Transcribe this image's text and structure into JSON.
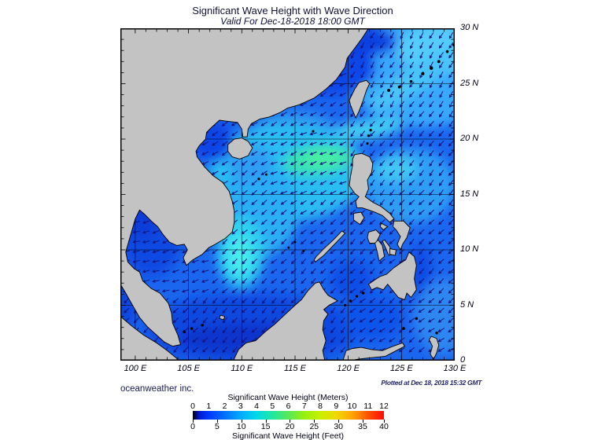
{
  "header": {
    "title": "Significant Wave Height with Wave Direction",
    "subtitle": "Valid For Dec-18-2018 18:00 GMT"
  },
  "map": {
    "lat_labels": [
      "30 N",
      "25 N",
      "20 N",
      "15 N",
      "10 N",
      "5 N",
      "0"
    ],
    "lat_values": [
      30,
      25,
      20,
      15,
      10,
      5,
      0
    ],
    "lon_labels": [
      "100 E",
      "105 E",
      "110 E",
      "115 E",
      "120 E",
      "125 E",
      "130 E"
    ],
    "lon_values": [
      100,
      105,
      110,
      115,
      120,
      125,
      130
    ],
    "grid_interval_deg": 5,
    "land_color": "#c3c3c3",
    "coast_color": "#000000",
    "ocean_base_color": "#1b66ee",
    "arrow_color": "#141480",
    "wave_direction": "arrows point predominantly southwest (northeast monsoon)"
  },
  "footer": {
    "branding": "oceanweather inc.",
    "plotted": "Plotted at Dec 18, 2018 15:32 GMT"
  },
  "legend": {
    "meters_title": "Significant Wave Height (Meters)",
    "feet_title": "Significant Wave Height (Feet)",
    "meter_ticks": [
      0,
      1,
      2,
      3,
      4,
      5,
      6,
      7,
      8,
      9,
      10,
      11,
      12
    ],
    "feet_ticks": [
      0,
      5,
      10,
      15,
      20,
      25,
      30,
      35,
      40
    ],
    "colormap": [
      {
        "m": 0.0,
        "color": "#000000"
      },
      {
        "m": 0.4,
        "color": "#0018d0"
      },
      {
        "m": 1.0,
        "color": "#0038ff"
      },
      {
        "m": 2.0,
        "color": "#0070ff"
      },
      {
        "m": 3.0,
        "color": "#00aaff"
      },
      {
        "m": 4.0,
        "color": "#00d8e8"
      },
      {
        "m": 5.0,
        "color": "#20e8a0"
      },
      {
        "m": 6.0,
        "color": "#58e858"
      },
      {
        "m": 7.0,
        "color": "#98f010"
      },
      {
        "m": 8.0,
        "color": "#c8f000"
      },
      {
        "m": 9.0,
        "color": "#f0d800"
      },
      {
        "m": 9.8,
        "color": "#ffb000"
      },
      {
        "m": 10.4,
        "color": "#ff8800"
      },
      {
        "m": 11.0,
        "color": "#ff5000"
      },
      {
        "m": 12.0,
        "color": "#ff0c00"
      }
    ]
  }
}
